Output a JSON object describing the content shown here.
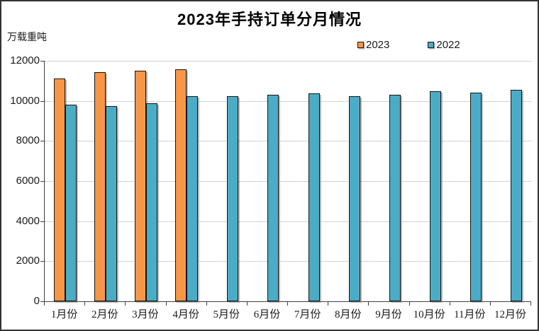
{
  "chart_data": {
    "type": "bar",
    "title": "2023年手持订单分月情况",
    "unit_label": "万载重吨",
    "categories": [
      "1月份",
      "2月份",
      "3月份",
      "4月份",
      "5月份",
      "6月份",
      "7月份",
      "8月份",
      "9月份",
      "10月份",
      "11月份",
      "12月份"
    ],
    "series": [
      {
        "name": "2023",
        "color": "#F79646",
        "values": [
          11120,
          11450,
          11520,
          11560,
          null,
          null,
          null,
          null,
          null,
          null,
          null,
          null
        ]
      },
      {
        "name": "2022",
        "color": "#4BACC6",
        "values": [
          9810,
          9750,
          9880,
          10220,
          10240,
          10300,
          10370,
          10240,
          10290,
          10500,
          10410,
          10570
        ]
      }
    ],
    "ylim": [
      0,
      12000
    ],
    "y_ticks": [
      0,
      2000,
      4000,
      6000,
      8000,
      10000,
      12000
    ],
    "xlabel": "",
    "ylabel": "万载重吨",
    "grid": true,
    "legend_position": "top-right",
    "legend_entries": [
      "2023",
      "2022"
    ],
    "colors": {
      "series_2023": "#F79646",
      "series_2022": "#4BACC6",
      "gridline": "#A6A6A6",
      "axis": "#404040",
      "text": "#1A1A1A",
      "frame_border": "#333333",
      "bar_outline": "#141414"
    }
  }
}
